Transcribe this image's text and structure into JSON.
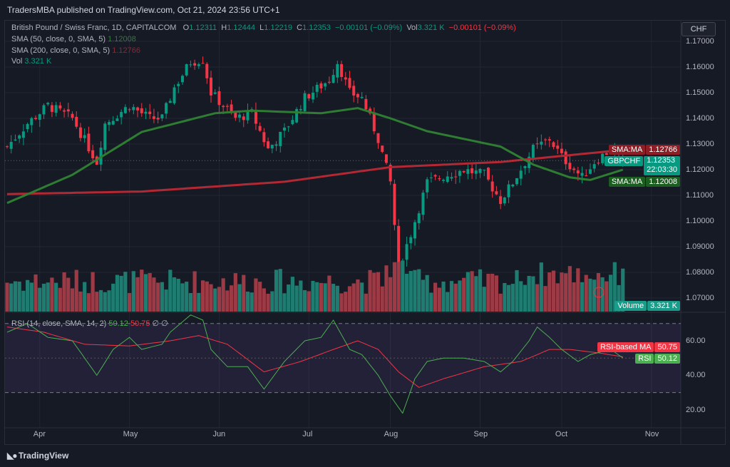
{
  "header": {
    "published": "TradersMBA published on TradingView.com, Oct 21, 2024 23:56 UTC+1",
    "currency": "CHF"
  },
  "legend": {
    "symbol": "British Pound / Swiss Franc, 1D, CAPITALCOM",
    "o_label": "O",
    "o": "1.12311",
    "h_label": "H",
    "h": "1.12444",
    "l_label": "L",
    "l": "1.12219",
    "c_label": "C",
    "c": "1.12353",
    "change": "−0.00101 (−0.09%)",
    "vol_label": "Vol",
    "vol": "3.321 K",
    "vol_change": "−0.00101 (−0.09%)",
    "sma50": "SMA (50, close, 0, SMA, 5)",
    "sma50_val": "1.12008",
    "sma200": "SMA (200, close, 0, SMA, 5)",
    "sma200_val": "1.12766",
    "vol_ind": "Vol",
    "vol_ind_val": "3.321 K",
    "rsi": "RSI (14, close, SMA, 14, 2)",
    "rsi_val": "50.12",
    "rsi_ma_val": "50.75",
    "rsi_na": "∅ ∅"
  },
  "tags": {
    "sma200_label": "SMA:MA",
    "sma200_val": "1.12766",
    "sym_label": "GBPCHF",
    "sym_val": "1.12353",
    "countdown": "22:03:30",
    "sma50_label": "SMA:MA",
    "sma50_val": "1.12008",
    "volume_label": "Volume",
    "volume_val": "3.321 K",
    "rsima_label": "RSI-based MA",
    "rsima_val": "50.75",
    "rsi_label": "RSI",
    "rsi_val": "50.12"
  },
  "footer": {
    "brand": "TradingView"
  },
  "colors": {
    "up": "#089981",
    "down": "#f23645",
    "sma50": "#2e7d32",
    "sma200": "#b22833",
    "rsi": "#4caf50",
    "rsi_ma": "#f23645"
  },
  "chart_data": {
    "type": "candlestick",
    "price_axis": [
      "1.17000",
      "1.16000",
      "1.15000",
      "1.14000",
      "1.13000",
      "1.12000",
      "1.11000",
      "1.10000",
      "1.09000",
      "1.08000",
      "1.07000"
    ],
    "price_range": [
      1.066,
      1.173
    ],
    "rsi_axis": [
      "60.00",
      "40.00",
      "20.00"
    ],
    "rsi_bands": [
      70,
      30
    ],
    "time_ticks": [
      {
        "label": "Apr",
        "bar": 8
      },
      {
        "label": "May",
        "bar": 30
      },
      {
        "label": "Jun",
        "bar": 52
      },
      {
        "label": "Jul",
        "bar": 74
      },
      {
        "label": "Aug",
        "bar": 94
      },
      {
        "label": "Sep",
        "bar": 116
      },
      {
        "label": "Oct",
        "bar": 136
      },
      {
        "label": "Nov",
        "bar": 158
      }
    ],
    "close_keypoints": [
      [
        0,
        1.129
      ],
      [
        5,
        1.138
      ],
      [
        10,
        1.145
      ],
      [
        16,
        1.14
      ],
      [
        22,
        1.123
      ],
      [
        24,
        1.138
      ],
      [
        30,
        1.145
      ],
      [
        35,
        1.14
      ],
      [
        38,
        1.14
      ],
      [
        41,
        1.152
      ],
      [
        45,
        1.162
      ],
      [
        48,
        1.163
      ],
      [
        50,
        1.15
      ],
      [
        56,
        1.14
      ],
      [
        60,
        1.142
      ],
      [
        64,
        1.128
      ],
      [
        68,
        1.135
      ],
      [
        73,
        1.148
      ],
      [
        79,
        1.155
      ],
      [
        81,
        1.162
      ],
      [
        84,
        1.15
      ],
      [
        87,
        1.148
      ],
      [
        91,
        1.132
      ],
      [
        94,
        1.115
      ],
      [
        96,
        1.082
      ],
      [
        99,
        1.095
      ],
      [
        103,
        1.115
      ],
      [
        108,
        1.118
      ],
      [
        112,
        1.12
      ],
      [
        117,
        1.118
      ],
      [
        121,
        1.108
      ],
      [
        124,
        1.115
      ],
      [
        129,
        1.128
      ],
      [
        133,
        1.132
      ],
      [
        136,
        1.125
      ],
      [
        141,
        1.117
      ],
      [
        144,
        1.123
      ],
      [
        148,
        1.128
      ],
      [
        151,
        1.1235
      ]
    ],
    "sma50_keypoints": [
      [
        0,
        1.107
      ],
      [
        16,
        1.118
      ],
      [
        33,
        1.1347
      ],
      [
        51,
        1.142
      ],
      [
        60,
        1.143
      ],
      [
        77,
        1.142
      ],
      [
        86,
        1.144
      ],
      [
        94,
        1.14
      ],
      [
        103,
        1.135
      ],
      [
        112,
        1.132
      ],
      [
        121,
        1.129
      ],
      [
        129,
        1.122
      ],
      [
        138,
        1.117
      ],
      [
        143,
        1.116
      ],
      [
        151,
        1.12
      ]
    ],
    "sma200_keypoints": [
      [
        0,
        1.1105
      ],
      [
        33,
        1.1115
      ],
      [
        68,
        1.1153
      ],
      [
        94,
        1.121
      ],
      [
        121,
        1.123
      ],
      [
        151,
        1.1277
      ]
    ],
    "rsi_keypoints": [
      [
        0,
        65
      ],
      [
        5,
        70
      ],
      [
        10,
        62
      ],
      [
        16,
        60
      ],
      [
        22,
        40
      ],
      [
        26,
        55
      ],
      [
        30,
        62
      ],
      [
        33,
        55
      ],
      [
        38,
        58
      ],
      [
        40,
        65
      ],
      [
        45,
        75
      ],
      [
        48,
        72
      ],
      [
        50,
        55
      ],
      [
        54,
        45
      ],
      [
        59,
        45
      ],
      [
        63,
        32
      ],
      [
        68,
        48
      ],
      [
        73,
        60
      ],
      [
        77,
        62
      ],
      [
        80,
        72
      ],
      [
        84,
        55
      ],
      [
        87,
        52
      ],
      [
        91,
        40
      ],
      [
        94,
        28
      ],
      [
        97,
        18
      ],
      [
        100,
        38
      ],
      [
        103,
        48
      ],
      [
        107,
        50
      ],
      [
        112,
        50
      ],
      [
        117,
        48
      ],
      [
        121,
        42
      ],
      [
        124,
        48
      ],
      [
        128,
        60
      ],
      [
        130,
        68
      ],
      [
        133,
        62
      ],
      [
        136,
        55
      ],
      [
        140,
        48
      ],
      [
        143,
        52
      ],
      [
        148,
        55
      ],
      [
        151,
        50.12
      ]
    ],
    "rsi_ma_keypoints": [
      [
        0,
        68
      ],
      [
        9,
        65
      ],
      [
        19,
        58
      ],
      [
        30,
        57
      ],
      [
        40,
        60
      ],
      [
        47,
        63
      ],
      [
        54,
        58
      ],
      [
        63,
        42
      ],
      [
        72,
        48
      ],
      [
        80,
        55
      ],
      [
        86,
        60
      ],
      [
        91,
        55
      ],
      [
        96,
        42
      ],
      [
        101,
        33
      ],
      [
        107,
        38
      ],
      [
        117,
        45
      ],
      [
        126,
        48
      ],
      [
        133,
        55
      ],
      [
        138,
        55
      ],
      [
        145,
        53
      ],
      [
        151,
        50.75
      ]
    ]
  }
}
